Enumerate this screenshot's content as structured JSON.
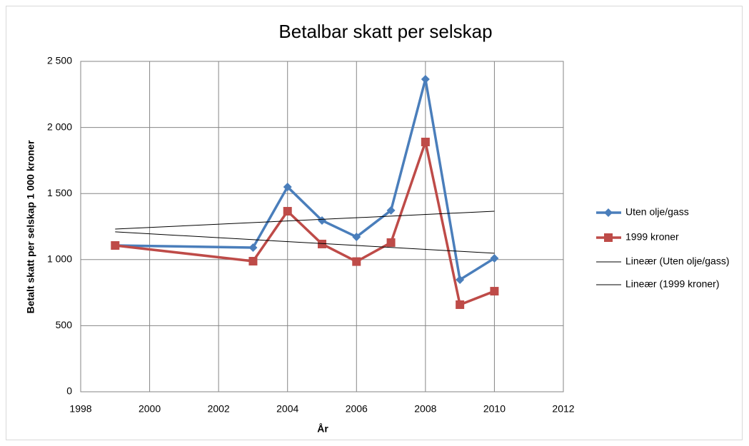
{
  "chart_data": {
    "type": "line",
    "title": "Betalbar skatt per selskap",
    "xlabel": "År",
    "ylabel": "Betalt skatt per selskap 1 000 kroner",
    "x": [
      1999,
      2003,
      2004,
      2005,
      2006,
      2007,
      2008,
      2009,
      2010
    ],
    "series": [
      {
        "name": "Uten olje/gass",
        "color": "#4a7ebb",
        "marker": "diamond",
        "values": [
          1107,
          1091,
          1550,
          1296,
          1172,
          1372,
          2365,
          848,
          1010
        ]
      },
      {
        "name": "1999 kroner",
        "color": "#be4b48",
        "marker": "square",
        "values": [
          1107,
          988,
          1366,
          1118,
          985,
          1129,
          1890,
          659,
          761
        ]
      },
      {
        "name": "Lineær (Uten olje/gass)",
        "color": "#000000",
        "x": [
          1999,
          2010
        ],
        "values": [
          1231,
          1366
        ]
      },
      {
        "name": "Lineær (1999 kroner)",
        "color": "#000000",
        "x": [
          1999,
          2010
        ],
        "values": [
          1210,
          1048
        ]
      }
    ],
    "xlim": [
      1998,
      2012
    ],
    "xticks": [
      1998,
      2000,
      2002,
      2004,
      2006,
      2008,
      2010,
      2012
    ],
    "ylim": [
      0,
      2500
    ],
    "yticks": [
      0,
      500,
      {
        "value": 1000,
        "label": "1 000"
      },
      {
        "value": 1500,
        "label": "1 500"
      },
      {
        "value": 2000,
        "label": "2 000"
      },
      {
        "value": 2500,
        "label": "2 500"
      }
    ],
    "grid": true,
    "legend": "right"
  }
}
